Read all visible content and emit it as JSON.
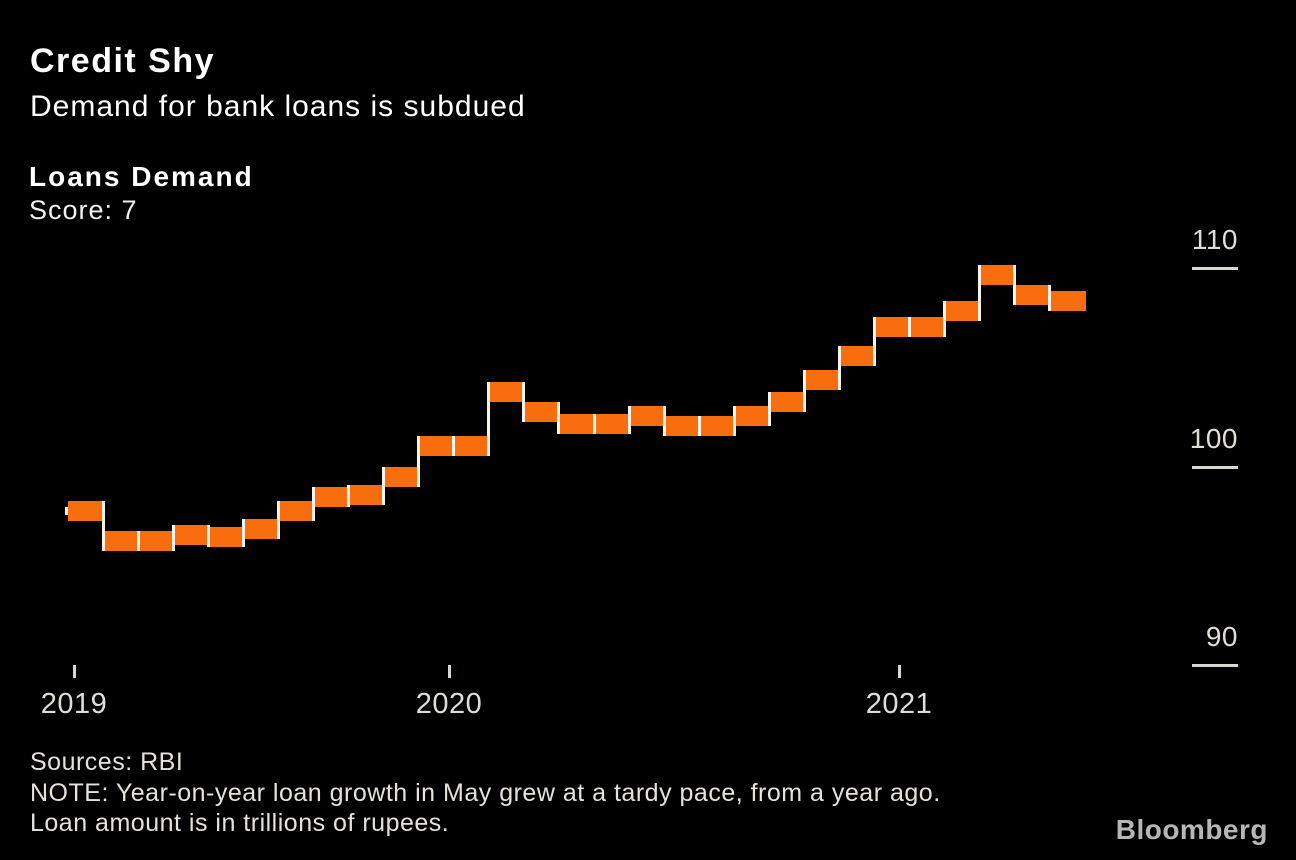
{
  "page": {
    "background": "#000000",
    "text_color": "#ffffff",
    "muted_text_color": "#e5e2dc"
  },
  "header": {
    "title": "Credit Shy",
    "subtitle": "Demand for bank loans is subdued"
  },
  "legend": {
    "series_label": "Loans Demand",
    "score": "Score: 7"
  },
  "chart_data": {
    "type": "bar",
    "variant": "step-bar-segments-with-connectors",
    "title": "Loans Demand",
    "score_annotation": "Score: 7",
    "categories": [
      "Jan 2019",
      "Feb 2019",
      "Mar 2019",
      "Apr 2019",
      "May 2019",
      "Jun 2019",
      "Jul 2019",
      "Aug 2019",
      "Sep 2019",
      "Oct 2019",
      "Nov 2019",
      "Dec 2019",
      "Jan 2020",
      "Feb 2020",
      "Mar 2020",
      "Apr 2020",
      "May 2020",
      "Jun 2020",
      "Jul 2020",
      "Aug 2020",
      "Sep 2020",
      "Oct 2020",
      "Nov 2020",
      "Dec 2020",
      "Jan 2021",
      "Feb 2021",
      "Mar 2021",
      "Apr 2021",
      "May 2021"
    ],
    "values": [
      97.7,
      96.2,
      96.2,
      96.5,
      96.4,
      96.8,
      97.7,
      98.4,
      98.5,
      99.4,
      101.0,
      101.0,
      103.7,
      102.7,
      102.1,
      102.1,
      102.5,
      102.0,
      102.0,
      102.5,
      103.2,
      104.3,
      105.5,
      107.0,
      107.0,
      107.8,
      109.6,
      108.6,
      108.3
    ],
    "xlabel": "",
    "ylabel": "",
    "x_ticks": [
      "2019",
      "2020",
      "2021"
    ],
    "y_ticks": [
      110,
      100,
      90
    ],
    "ylim": [
      88.5,
      112
    ],
    "grid": false,
    "legend_position": "top-left",
    "y_axis_side": "right",
    "series_color": "#f86e0f",
    "connector_color": "#f7f3e9"
  },
  "footer": {
    "sources": "Sources: RBI",
    "note_line1": "NOTE: Year-on-year loan growth in May grew at a tardy pace, from a year ago.",
    "note_line2": "Loan amount is in trillions of rupees.",
    "brand": "Bloomberg"
  }
}
